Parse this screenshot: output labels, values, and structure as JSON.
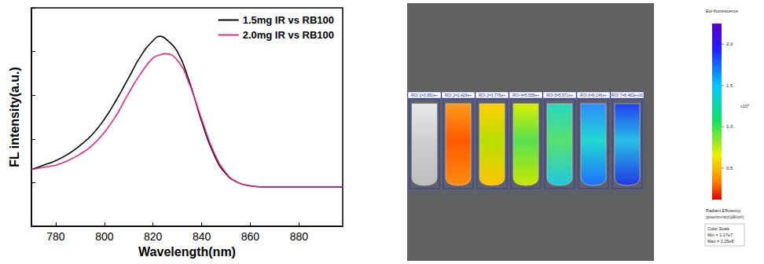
{
  "chart_data": {
    "type": "line",
    "x_label": "Wavelength(nm)",
    "y_label": "FL intensity(a.u.)",
    "x": [
      770,
      775,
      780,
      785,
      790,
      795,
      800,
      805,
      810,
      815,
      820,
      823,
      825,
      830,
      835,
      840,
      845,
      850,
      855,
      860,
      865,
      870,
      880,
      890,
      898
    ],
    "series": [
      {
        "name": "1.5mg IR vs RB100",
        "color": "#000000",
        "values": [
          0.26,
          0.28,
          0.3,
          0.33,
          0.37,
          0.42,
          0.49,
          0.58,
          0.68,
          0.78,
          0.85,
          0.87,
          0.86,
          0.8,
          0.66,
          0.48,
          0.33,
          0.24,
          0.2,
          0.185,
          0.18,
          0.18,
          0.18,
          0.18,
          0.18
        ]
      },
      {
        "name": "2.0mg IR vs RB100",
        "color": "#e0288a",
        "values": [
          0.26,
          0.27,
          0.28,
          0.3,
          0.33,
          0.37,
          0.43,
          0.51,
          0.61,
          0.7,
          0.77,
          0.785,
          0.79,
          0.76,
          0.65,
          0.49,
          0.34,
          0.245,
          0.2,
          0.185,
          0.18,
          0.18,
          0.18,
          0.18,
          0.18
        ]
      }
    ],
    "xlim": [
      770,
      898
    ],
    "xticks": [
      780,
      800,
      820,
      840,
      860,
      880
    ],
    "ylim": [
      0,
      1
    ],
    "yticks": [
      0,
      0.2,
      0.4,
      0.6,
      0.8,
      1
    ],
    "tick_labels": "x",
    "legend": "upper right",
    "grid": false
  },
  "image_panel": {
    "roi_labels": [
      "ROI 1=3.950e+",
      "ROI 2=2.429e+",
      "ROI 3=3.776e+",
      "ROI 4=5.558e+",
      "ROI 5=5.971e+",
      "ROI 6=8.146e+",
      "ROI 7=8.482e+00"
    ],
    "colorbar": {
      "title": "Epi-fluorescence",
      "range": [
        0.117,
        2.25
      ],
      "ticks": [
        0.5,
        {
          "value": 1,
          "label": "1.0"
        },
        1.5,
        {
          "value": 2,
          "label": "2.0"
        }
      ],
      "multiplier_label": "x10⁸",
      "units_title": "Radiant Efficiency",
      "units": "(p/sec/cm²/sr)/(µW/cm²)",
      "scale_text": [
        "Color Scale",
        "Min = 1.17e7",
        "Max = 2.25e8"
      ]
    }
  }
}
